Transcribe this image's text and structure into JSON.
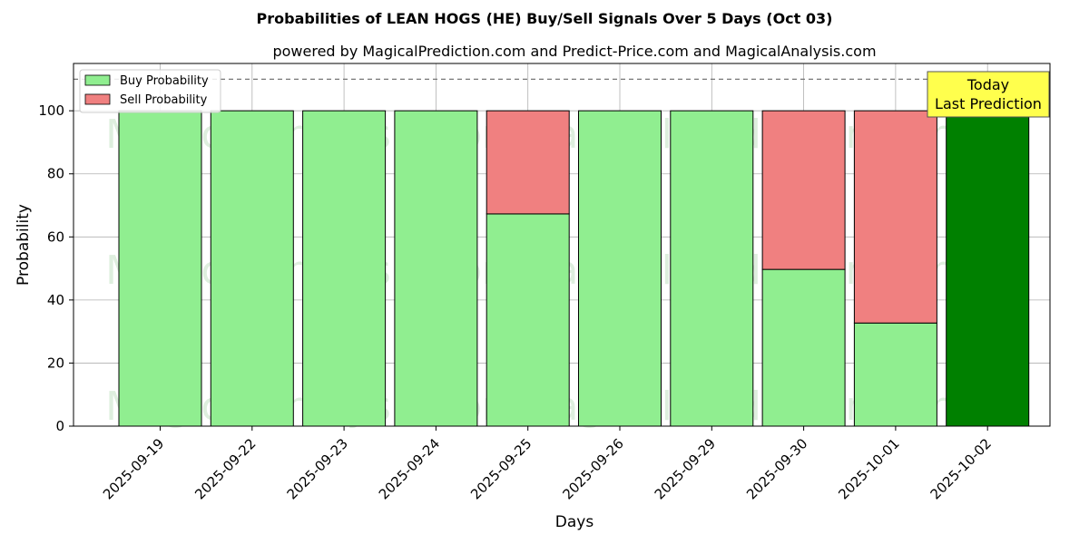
{
  "chart_data": {
    "type": "bar",
    "title": "Probabilities of LEAN HOGS (HE) Buy/Sell Signals Over 5 Days (Oct 03)",
    "subtitle": "powered by MagicalPrediction.com and Predict-Price.com and MagicalAnalysis.com",
    "xlabel": "Days",
    "ylabel": "Probability",
    "ylim": [
      0,
      115
    ],
    "yticks": [
      0,
      20,
      40,
      60,
      80,
      100
    ],
    "categories": [
      "2025-09-19",
      "2025-09-22",
      "2025-09-23",
      "2025-09-24",
      "2025-09-25",
      "2025-09-26",
      "2025-09-29",
      "2025-09-30",
      "2025-10-01",
      "2025-10-02"
    ],
    "series": [
      {
        "name": "Buy Probability",
        "color": "#90ee90",
        "values": [
          100,
          100,
          100,
          100,
          67.3,
          100,
          100,
          49.7,
          32.7,
          100
        ]
      },
      {
        "name": "Sell Probability",
        "color": "#f08080",
        "values": [
          0,
          0,
          0,
          0,
          32.7,
          0,
          0,
          50.3,
          67.3,
          0
        ]
      }
    ],
    "highlight": {
      "index": 9,
      "color": "#008000"
    },
    "reference_line": {
      "y": 110,
      "style": "dashed"
    },
    "annotation": {
      "lines": [
        "Today",
        "Last Prediction"
      ],
      "color": "#ffff4d"
    },
    "legend_position": "top-left",
    "grid": true,
    "watermarks": [
      "MagicalAnalysis.com",
      "MagicalPrediction.com"
    ]
  }
}
